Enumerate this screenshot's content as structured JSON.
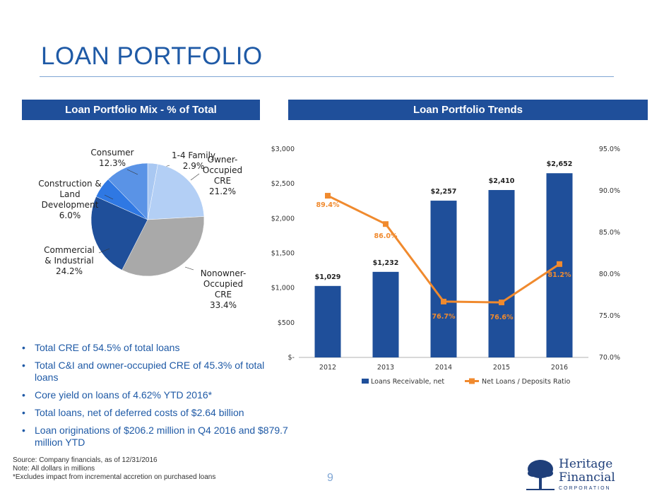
{
  "page": {
    "title": "LOAN PORTFOLIO",
    "page_number": "9"
  },
  "panels": {
    "left_header": "Loan Portfolio Mix - % of Total",
    "right_header": "Loan Portfolio Trends"
  },
  "bullets": [
    "Total CRE of 54.5% of total loans",
    "Total C&I and owner-occupied CRE of 45.3% of total loans",
    "Core yield on loans of 4.62% YTD 2016*",
    "Total loans, net of deferred costs of $2.64 billion",
    "Loan originations of $206.2 million in Q4 2016 and $879.7 million YTD"
  ],
  "footnotes": [
    "Source: Company financials, as of 12/31/2016",
    "Note: All dollars in millions",
    "*Excludes impact from incremental accretion on purchased loans"
  ],
  "logo": {
    "name_line1": "Heritage",
    "name_line2": "Financial",
    "subtitle": "CORPORATION"
  },
  "chart_data": [
    {
      "type": "pie",
      "title": "",
      "slices": [
        {
          "label": "1-4 Family",
          "value": 2.9,
          "value_label": "2.9%",
          "color": "#a9c8f2"
        },
        {
          "label": "Owner-Occupied CRE",
          "value": 21.2,
          "value_label": "21.2%",
          "color": "#b3cff5"
        },
        {
          "label": "Nonowner-Occupied CRE",
          "value": 33.4,
          "value_label": "33.4%",
          "color": "#a9a9a9"
        },
        {
          "label": "Commercial & Industrial",
          "value": 24.2,
          "value_label": "24.2%",
          "color": "#1f4f9a"
        },
        {
          "label": "Construction & Land Development",
          "value": 6.0,
          "value_label": "6.0%",
          "color": "#2f78e3"
        },
        {
          "label": "Consumer",
          "value": 12.3,
          "value_label": "12.3%",
          "color": "#5a93e6"
        }
      ]
    },
    {
      "type": "bar",
      "categories": [
        "2012",
        "2013",
        "2014",
        "2015",
        "2016"
      ],
      "series": [
        {
          "name": "Loans Receivable, net",
          "type": "bar",
          "axis": "left",
          "values": [
            1029,
            1232,
            2257,
            2410,
            2652
          ],
          "labels": [
            "$1,029",
            "$1,232",
            "$2,257",
            "$2,410",
            "$2,652"
          ],
          "color": "#1f4f9a"
        },
        {
          "name": "Net Loans / Deposits Ratio",
          "type": "line",
          "axis": "right",
          "values": [
            89.4,
            86.0,
            76.7,
            76.6,
            81.2
          ],
          "labels": [
            "89.4%",
            "86.0%",
            "76.7%",
            "76.6%",
            "81.2%"
          ],
          "color": "#f08a2e"
        }
      ],
      "y_left": {
        "range": [
          0,
          3000
        ],
        "ticks": [
          0,
          500,
          1000,
          1500,
          2000,
          2500,
          3000
        ],
        "tick_labels": [
          "$-",
          "$500",
          "$1,000",
          "$1,500",
          "$2,000",
          "$2,500",
          "$3,000"
        ]
      },
      "y_right": {
        "range": [
          70,
          95
        ],
        "ticks": [
          70,
          75,
          80,
          85,
          90,
          95
        ],
        "tick_labels": [
          "70.0%",
          "75.0%",
          "80.0%",
          "85.0%",
          "90.0%",
          "95.0%"
        ]
      },
      "grid": false,
      "legend": "bottom"
    }
  ]
}
